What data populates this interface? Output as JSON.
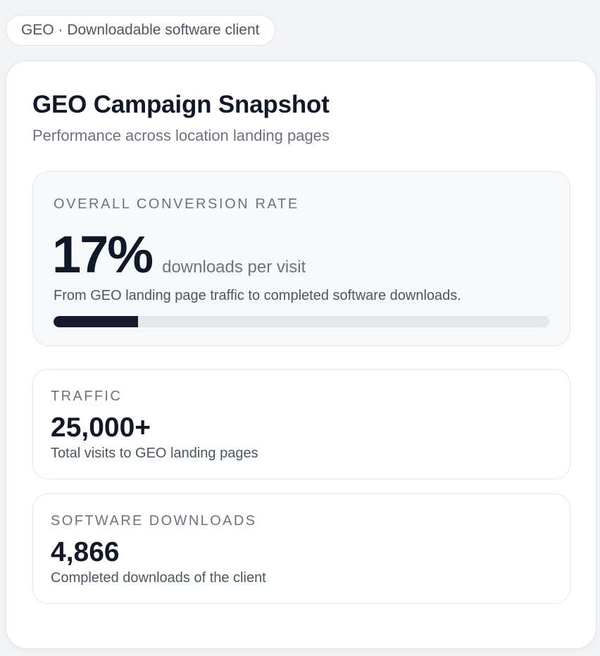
{
  "context_pill": "GEO · Downloadable software client",
  "card": {
    "title": "GEO Campaign Snapshot",
    "subtitle": "Performance across location landing pages"
  },
  "conversion": {
    "label": "OVERALL CONVERSION RATE",
    "value": "17%",
    "unit": "downloads per visit",
    "description": "From GEO landing page traffic to completed software downloads.",
    "progress_fraction": 0.17,
    "bar_color": "#151a2b"
  },
  "traffic": {
    "label": "TRAFFIC",
    "value": "25,000+",
    "description": "Total visits to GEO landing pages"
  },
  "downloads": {
    "label": "SOFTWARE DOWNLOADS",
    "value": "4,866",
    "description": "Completed downloads of the client"
  }
}
